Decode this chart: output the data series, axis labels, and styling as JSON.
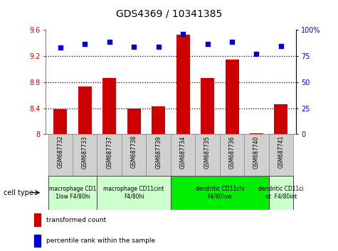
{
  "title": "GDS4369 / 10341385",
  "samples": [
    "GSM687732",
    "GSM687733",
    "GSM687737",
    "GSM687738",
    "GSM687739",
    "GSM687734",
    "GSM687735",
    "GSM687736",
    "GSM687740",
    "GSM687741"
  ],
  "transformed_count": [
    8.38,
    8.73,
    8.86,
    8.4,
    8.43,
    9.53,
    8.87,
    9.15,
    8.02,
    8.46
  ],
  "percentile_rank": [
    83,
    87,
    89,
    84,
    84,
    96,
    87,
    89,
    77,
    85
  ],
  "ylim_left": [
    8.0,
    9.6
  ],
  "ylim_right": [
    0,
    100
  ],
  "yticks_left": [
    8.0,
    8.4,
    8.8,
    9.2,
    9.6
  ],
  "ytick_labels_left": [
    "8",
    "8.4",
    "8.8",
    "9.2",
    "9.6"
  ],
  "yticks_right": [
    0,
    25,
    50,
    75,
    100
  ],
  "ytick_labels_right": [
    "0",
    "25",
    "50",
    "75",
    "100%"
  ],
  "bar_color": "#cc0000",
  "dot_color": "#0000cc",
  "bg_color": "#ffffff",
  "sample_box_color": "#d0d0d0",
  "group_defs": [
    {
      "indices": [
        0,
        1
      ],
      "label": "macrophage CD1\n1low F4/80hi",
      "color": "#ccffcc"
    },
    {
      "indices": [
        2,
        3,
        4
      ],
      "label": "macrophage CD11cint\nF4/80hi",
      "color": "#ccffcc"
    },
    {
      "indices": [
        5,
        6,
        7,
        8
      ],
      "label": "dendritic CD11chi\nF4/80low",
      "color": "#00ee00"
    },
    {
      "indices": [
        9
      ],
      "label": "dendritic CD11ci\nnt  F4/80int",
      "color": "#ccffcc"
    }
  ],
  "cell_type_label": "cell type",
  "legend_bar_label": "transformed count",
  "legend_dot_label": "percentile rank within the sample"
}
